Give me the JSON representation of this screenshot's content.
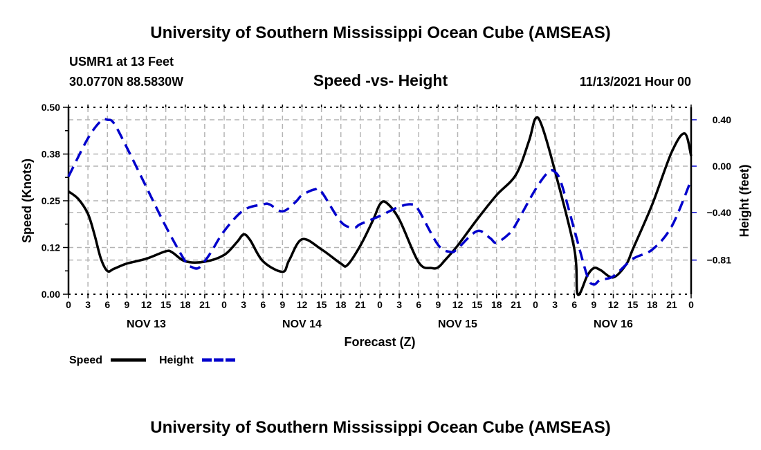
{
  "header": {
    "title": "University of Southern Mississippi Ocean Cube (AMSEAS)",
    "station": "USMR1 at 13 Feet",
    "coords": "30.0770N  88.5830W",
    "date": "11/13/2021 Hour 00",
    "footer_title": "University of Southern Mississippi Ocean Cube (AMSEAS)"
  },
  "chart_data": {
    "type": "line",
    "title": "Speed -vs- Height",
    "xlabel": "Forecast (Z)",
    "ylabel": "Speed (Knots)",
    "y2label": "Height (feet)",
    "xlim": [
      0,
      96
    ],
    "ylim": [
      0,
      0.5
    ],
    "y2lim": [
      -1.1,
      0.55
    ],
    "grid": true,
    "legend_position": "bottom-left",
    "x_ticks": [
      0,
      3,
      6,
      9,
      12,
      15,
      18,
      21,
      24,
      27,
      30,
      33,
      36,
      39,
      42,
      45,
      48,
      51,
      54,
      57,
      60,
      63,
      66,
      69,
      72,
      75,
      78,
      81,
      84,
      87,
      90,
      93,
      96
    ],
    "x_tick_labels": [
      "0",
      "3",
      "6",
      "9",
      "12",
      "15",
      "18",
      "21",
      "0",
      "3",
      "6",
      "9",
      "12",
      "15",
      "18",
      "21",
      "0",
      "3",
      "6",
      "9",
      "12",
      "15",
      "18",
      "21",
      "0",
      "3",
      "6",
      "9",
      "12",
      "15",
      "18",
      "21",
      "0"
    ],
    "day_labels": [
      {
        "hour": 12,
        "label": "NOV 13"
      },
      {
        "hour": 36,
        "label": "NOV 14"
      },
      {
        "hour": 60,
        "label": "NOV 15"
      },
      {
        "hour": 84,
        "label": "NOV 16"
      }
    ],
    "y_ticks": [
      {
        "value": 0,
        "label": "0.00"
      },
      {
        "value": 0.125,
        "label": "0.12"
      },
      {
        "value": 0.25,
        "label": "0.25"
      },
      {
        "value": 0.375,
        "label": "0.38"
      },
      {
        "value": 0.5,
        "label": "0.50"
      }
    ],
    "y2_ticks": [
      {
        "value": 0.4,
        "label": "0.40"
      },
      {
        "value": 0.0,
        "label": "0.00"
      },
      {
        "value": -0.4,
        "label": "-0.40"
      },
      {
        "value": -0.81,
        "label": "-0.81"
      }
    ],
    "series": [
      {
        "name": "Speed",
        "axis": "left",
        "color": "#000000",
        "style": "solid",
        "x": [
          0,
          1.5,
          3,
          4,
          5,
          6,
          7,
          9,
          12,
          15,
          16,
          18,
          21,
          24,
          26,
          27,
          28,
          30,
          33,
          34,
          36,
          39,
          42,
          43,
          45,
          47,
          48,
          49,
          51,
          54,
          56,
          57,
          58,
          60,
          63,
          66,
          69,
          71,
          72,
          73,
          75,
          78,
          78.5,
          80,
          81,
          82,
          84,
          86,
          87,
          90,
          93,
          95,
          96
        ],
        "y": [
          0.275,
          0.255,
          0.215,
          0.16,
          0.095,
          0.062,
          0.068,
          0.082,
          0.095,
          0.115,
          0.112,
          0.088,
          0.087,
          0.105,
          0.14,
          0.16,
          0.145,
          0.088,
          0.06,
          0.09,
          0.147,
          0.12,
          0.082,
          0.078,
          0.13,
          0.2,
          0.24,
          0.245,
          0.2,
          0.085,
          0.07,
          0.072,
          0.09,
          0.13,
          0.2,
          0.265,
          0.32,
          0.41,
          0.47,
          0.45,
          0.33,
          0.12,
          0.0,
          0.05,
          0.07,
          0.065,
          0.045,
          0.08,
          0.12,
          0.24,
          0.38,
          0.43,
          0.37
        ]
      },
      {
        "name": "Height",
        "axis": "right",
        "color": "#0000cc",
        "style": "dashed",
        "x": [
          0,
          3,
          5,
          6,
          7,
          9,
          12,
          15,
          18,
          19,
          20,
          21,
          22,
          24,
          27,
          30,
          31,
          33,
          35,
          36,
          38,
          39,
          42,
          44,
          45,
          48,
          51,
          53,
          54,
          57,
          59,
          60,
          63,
          65,
          66,
          68,
          69,
          72,
          74,
          75,
          76,
          78,
          80,
          81,
          82,
          84,
          87,
          90,
          93,
          96
        ],
        "y": [
          -0.09,
          0.24,
          0.39,
          0.4,
          0.37,
          0.16,
          -0.18,
          -0.52,
          -0.82,
          -0.87,
          -0.88,
          -0.82,
          -0.74,
          -0.56,
          -0.38,
          -0.33,
          -0.33,
          -0.39,
          -0.31,
          -0.25,
          -0.2,
          -0.22,
          -0.48,
          -0.53,
          -0.5,
          -0.43,
          -0.35,
          -0.33,
          -0.38,
          -0.68,
          -0.74,
          -0.71,
          -0.56,
          -0.62,
          -0.66,
          -0.58,
          -0.5,
          -0.2,
          -0.05,
          -0.05,
          -0.15,
          -0.55,
          -0.95,
          -1.02,
          -0.98,
          -0.95,
          -0.8,
          -0.72,
          -0.52,
          -0.12
        ]
      }
    ]
  }
}
